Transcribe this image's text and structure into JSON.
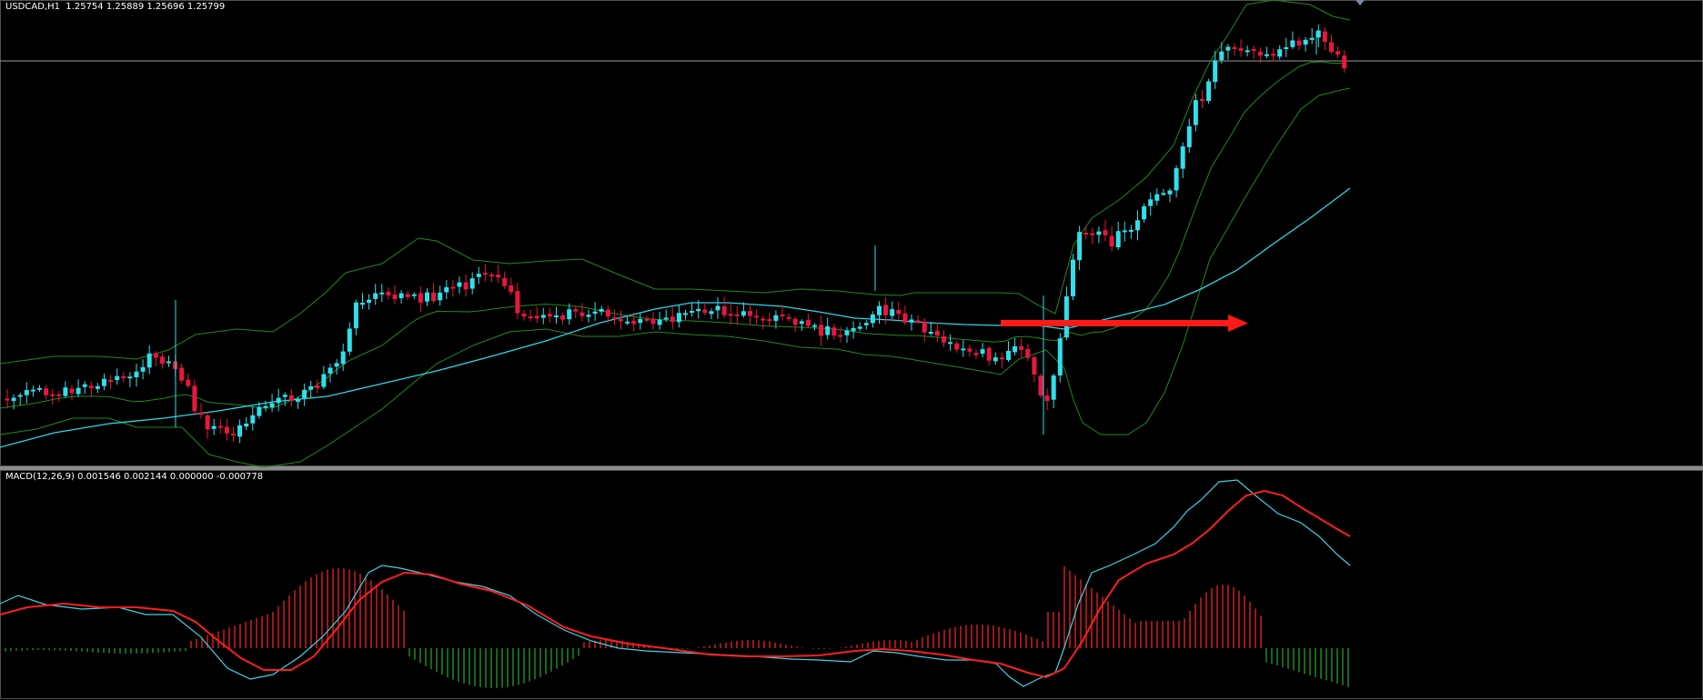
{
  "price_header": {
    "text": "USDCAD,H1  1.25754 1.25889 1.25696 1.25799"
  },
  "macd_header": {
    "text": "MACD(12,26,9) 0.001546 0.002144 0.000000 -0.000778"
  },
  "colors": {
    "background": "#000000",
    "bull_candle": "#2fe0ec",
    "bear_candle": "#e8173f",
    "bollinger": "#1f8a1f",
    "moving_average": "#2fd6e8",
    "crosshair": "#9a9a9a",
    "separator": "#8c8c8c",
    "arrow": "#ff1a1a",
    "macd_line": "#3fd2e6",
    "signal_line": "#ff1e1e",
    "hist_positive": "#d21e1e",
    "hist_negative": "#1f8a1f"
  },
  "chart_data": [
    {
      "type": "candlestick",
      "symbol": "USDCAD",
      "timeframe": "H1",
      "ohlc_last": {
        "open": 1.25754,
        "high": 1.25889,
        "low": 1.25696,
        "close": 1.25799
      },
      "overlays": [
        "bollinger-bands",
        "moving-average"
      ],
      "annotation": "horizontal-red-arrow"
    },
    {
      "type": "macd",
      "params": [
        12,
        26,
        9
      ],
      "values": {
        "main": 0.001546,
        "signal": 0.002144,
        "level": 0.0,
        "histogram": -0.000778
      },
      "series": [
        "histogram",
        "macd-line",
        "signal-line"
      ]
    }
  ]
}
